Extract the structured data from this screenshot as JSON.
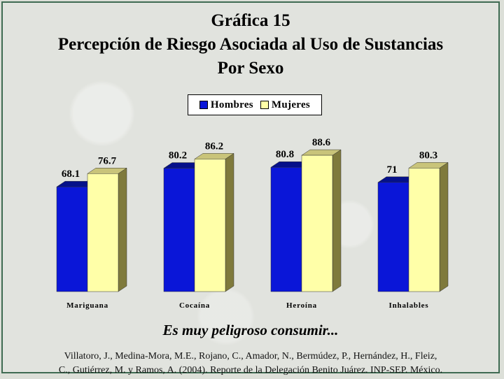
{
  "title_lines": [
    "Gráfica 15",
    "Percepción de Riesgo Asociada al Uso de Sustancias",
    "Por Sexo"
  ],
  "legend": {
    "hombres": "Hombres",
    "mujeres": "Mujeres"
  },
  "subtitle": "Es muy peligroso consumir...",
  "source_lines": [
    "Villatoro, J., Medina-Mora, M.E., Rojano, C., Amador, N., Bermúdez, P., Hernández, H., Fleiz,",
    "C., Gutiérrez, M. y Ramos, A. (2004). Reporte de la Delegación Benito Juárez. INP-SEP. México."
  ],
  "colors": {
    "hombres": "#0a16d8",
    "mujeres": "#ffffa8"
  },
  "chart_data": {
    "type": "bar",
    "categories": [
      "Mariguana",
      "Cocaína",
      "Heroína",
      "Inhalables"
    ],
    "series": [
      {
        "name": "Hombres",
        "values": [
          68.1,
          80.2,
          80.8,
          71
        ],
        "labels": [
          "68.1",
          "80.2",
          "80.8",
          "71"
        ]
      },
      {
        "name": "Mujeres",
        "values": [
          76.7,
          86.2,
          88.6,
          80.3
        ],
        "labels": [
          "76.7",
          "86.2",
          "88.6",
          "80.3"
        ]
      }
    ],
    "ylim": [
      0,
      100
    ],
    "grid": false,
    "legend_position": "top-center"
  }
}
